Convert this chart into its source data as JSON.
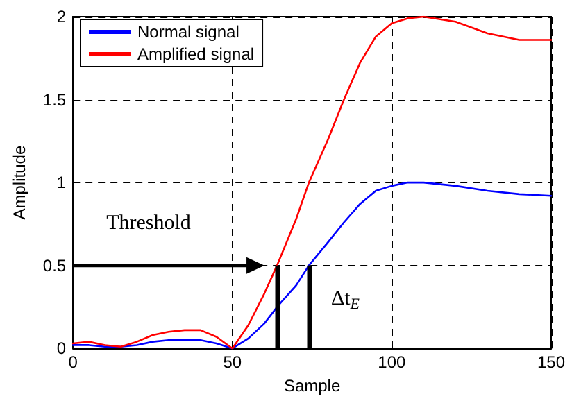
{
  "chart_data": {
    "type": "line",
    "xlabel": "Sample",
    "ylabel": "Amplitude",
    "x": [
      0,
      5,
      10,
      15,
      20,
      25,
      30,
      35,
      40,
      45,
      50,
      55,
      60,
      64,
      70,
      74,
      80,
      85,
      90,
      95,
      100,
      105,
      110,
      120,
      130,
      140,
      150
    ],
    "series": [
      {
        "name": "Normal signal",
        "color": "#0000ff",
        "values": [
          0.02,
          0.02,
          0.01,
          0.01,
          0.02,
          0.04,
          0.05,
          0.05,
          0.05,
          0.03,
          0,
          0.06,
          0.15,
          0.25,
          0.38,
          0.5,
          0.64,
          0.76,
          0.87,
          0.95,
          0.98,
          1.0,
          1.0,
          0.98,
          0.95,
          0.93,
          0.92
        ]
      },
      {
        "name": "Amplified signal",
        "color": "#ff0000",
        "values": [
          0.03,
          0.04,
          0.02,
          0.01,
          0.04,
          0.08,
          0.1,
          0.11,
          0.11,
          0.07,
          0,
          0.14,
          0.33,
          0.5,
          0.78,
          1.0,
          1.26,
          1.5,
          1.72,
          1.88,
          1.96,
          1.99,
          2.0,
          1.97,
          1.9,
          1.86,
          1.86
        ]
      }
    ],
    "xlim": [
      0,
      150
    ],
    "xticks": [
      0,
      50,
      100,
      150
    ],
    "ylim": [
      0,
      2
    ],
    "yticks": [
      0,
      0.5,
      1,
      1.5,
      2
    ],
    "grid": true,
    "legend": "top left",
    "marker": "none",
    "line_style": "solid",
    "ref_lines": [
      {
        "axis": "y",
        "value": 0.5,
        "label": "Threshold",
        "color": "#000000"
      },
      {
        "axis": "x",
        "value": 64,
        "color": "#000000"
      },
      {
        "axis": "x",
        "value": 74,
        "color": "#000000"
      }
    ],
    "annotations": [
      "Δt$_{E}$"
    ]
  }
}
